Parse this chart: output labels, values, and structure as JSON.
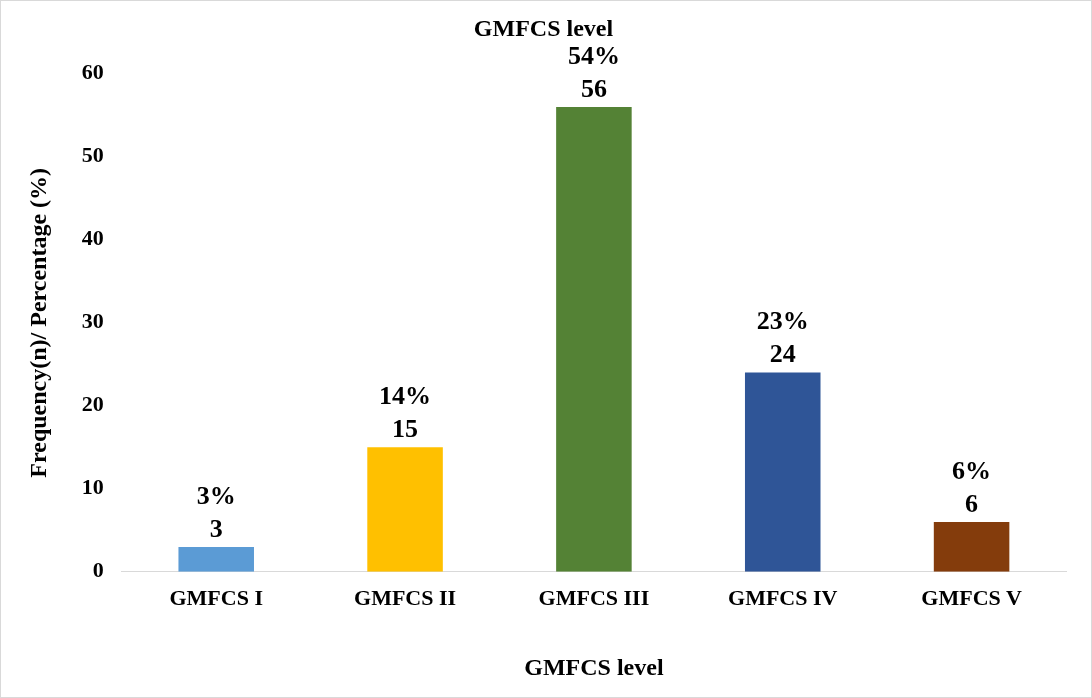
{
  "chart_data": {
    "type": "bar",
    "title": "GMFCS level",
    "xlabel": "GMFCS level",
    "ylabel": "Frequency(n)/ Percentage (%)",
    "categories": [
      "GMFCS I",
      "GMFCS II",
      "GMFCS III",
      "GMFCS IV",
      "GMFCS V"
    ],
    "values": [
      3,
      15,
      56,
      24,
      6
    ],
    "colors": [
      "#5b9bd5",
      "#ffc000",
      "#548235",
      "#2f5597",
      "#843c0c"
    ],
    "value_labels": [
      "3%\n3",
      "14%\n15",
      "54%\n56",
      "23%\n24",
      "6%\n6"
    ],
    "ylim": [
      0,
      60
    ],
    "yticks": [
      0,
      10,
      20,
      30,
      40,
      50,
      60
    ],
    "grid": false,
    "legend": false
  }
}
